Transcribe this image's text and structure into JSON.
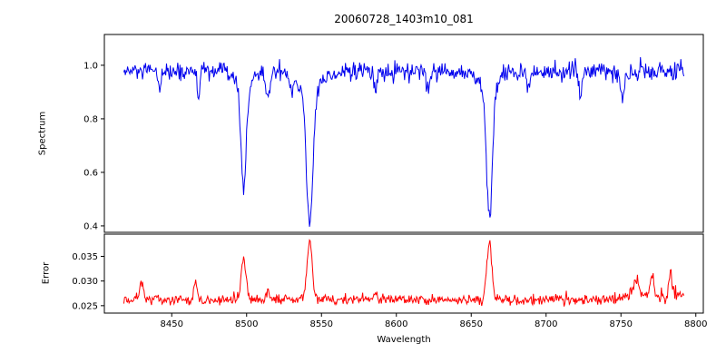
{
  "figure": {
    "background": "#ffffff"
  },
  "chart_data": {
    "type": "line",
    "title": "20060728_1403m10_081",
    "xlabel": "Wavelength",
    "legend": "none",
    "grid": false,
    "xlim": [
      8405,
      8805
    ],
    "xticks": [
      8450,
      8500,
      8550,
      8600,
      8650,
      8700,
      8750,
      8800
    ],
    "x_start": 8418,
    "x_end": 8792,
    "x_step": 0.5,
    "seed": 12345,
    "absorption_line_centers": [
      8498.0,
      8542.1,
      8662.1
    ],
    "absorption_line_minima": [
      0.55,
      0.41,
      0.43
    ],
    "panels": [
      {
        "name": "spectrum",
        "ylabel": "Spectrum",
        "color": "#0000ee",
        "ylim": [
          0.376,
          1.115
        ],
        "yticks": [
          0.4,
          0.6,
          0.8,
          1.0
        ],
        "ytick_labels": [
          "0.4",
          "0.6",
          "0.8",
          "1.0"
        ],
        "baseline": 0.975,
        "noise_sigma": 0.017,
        "red_end_rise": {
          "start": 8740,
          "extra_sigma": 0.013,
          "bias": "symmetric"
        },
        "features": [
          {
            "center": 8498.0,
            "depth": 0.36,
            "sigma": 1.8
          },
          {
            "center": 8498.0,
            "depth": 0.06,
            "sigma": 5.0
          },
          {
            "center": 8542.1,
            "depth": 0.49,
            "sigma": 2.2
          },
          {
            "center": 8542.1,
            "depth": 0.07,
            "sigma": 7.0
          },
          {
            "center": 8662.1,
            "depth": 0.48,
            "sigma": 2.0
          },
          {
            "center": 8662.1,
            "depth": 0.06,
            "sigma": 6.0
          },
          {
            "center": 8442.0,
            "depth": 0.06,
            "sigma": 1.0
          },
          {
            "center": 8468.0,
            "depth": 0.08,
            "sigma": 1.0
          },
          {
            "center": 8514.0,
            "depth": 0.1,
            "sigma": 1.2
          },
          {
            "center": 8530.0,
            "depth": 0.06,
            "sigma": 1.0
          },
          {
            "center": 8586.0,
            "depth": 0.07,
            "sigma": 1.0
          },
          {
            "center": 8621.0,
            "depth": 0.08,
            "sigma": 1.0
          },
          {
            "center": 8688.0,
            "depth": 0.06,
            "sigma": 1.0
          },
          {
            "center": 8723.0,
            "depth": 0.07,
            "sigma": 1.0
          },
          {
            "center": 8751.0,
            "depth": 0.12,
            "sigma": 1.0
          }
        ]
      },
      {
        "name": "error",
        "ylabel": "Error",
        "color": "#ff0000",
        "ylim": [
          0.0235,
          0.0395
        ],
        "yticks": [
          0.025,
          0.03,
          0.035
        ],
        "ytick_labels": [
          "0.025",
          "0.030",
          "0.035"
        ],
        "baseline": 0.0262,
        "noise_sigma": 0.0005,
        "red_end_rise": {
          "start": 8730,
          "extra_sigma": 0.0012,
          "bias": "up"
        },
        "features": [
          {
            "center": 8498.0,
            "amp": 0.0085,
            "sigma": 1.6
          },
          {
            "center": 8542.1,
            "amp": 0.0118,
            "sigma": 1.8
          },
          {
            "center": 8662.1,
            "amp": 0.0115,
            "sigma": 1.7
          },
          {
            "center": 8430.0,
            "amp": 0.004,
            "sigma": 1.2
          },
          {
            "center": 8466.0,
            "amp": 0.0038,
            "sigma": 1.0
          },
          {
            "center": 8514.0,
            "amp": 0.002,
            "sigma": 1.0
          },
          {
            "center": 8586.0,
            "amp": 0.0015,
            "sigma": 1.0
          },
          {
            "center": 8760.0,
            "amp": 0.0035,
            "sigma": 2.0
          },
          {
            "center": 8771.0,
            "amp": 0.0045,
            "sigma": 1.2
          },
          {
            "center": 8783.0,
            "amp": 0.005,
            "sigma": 1.0
          }
        ]
      }
    ]
  }
}
